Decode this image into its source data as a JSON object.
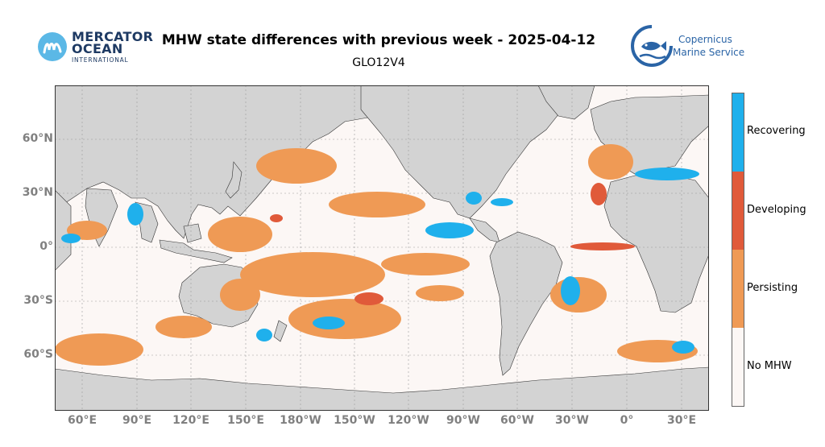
{
  "header": {
    "title": "MHW state differences with previous week - 2025-04-12",
    "subtitle": "GLO12V4"
  },
  "logos": {
    "mercator": {
      "line1": "MERCATOR",
      "line2": "OCEAN",
      "line3": "INTERNATIONAL"
    },
    "copernicus": {
      "line1": "Copernicus",
      "line2": "Marine Service"
    }
  },
  "map": {
    "projection": "PlateCarree, central longitude 180",
    "latitude_labels": [
      "60°N",
      "30°N",
      "0°",
      "30°S",
      "60°S"
    ],
    "longitude_labels": [
      "60°E",
      "90°E",
      "120°E",
      "150°E",
      "180°W",
      "150°W",
      "120°W",
      "90°W",
      "60°W",
      "30°W",
      "0°",
      "30°E"
    ],
    "colors": {
      "land": "#d3d3d3",
      "ocean_no_mhw": "#fcf7f5",
      "persisting": "#ef9a55",
      "developing": "#e05a3a",
      "recovering": "#1fb0ec"
    }
  },
  "legend": {
    "items": [
      {
        "label": "Recovering",
        "color": "#1fb0ec"
      },
      {
        "label": "Developing",
        "color": "#e05a3a"
      },
      {
        "label": "Persisting",
        "color": "#ef9a55"
      },
      {
        "label": "No MHW",
        "color": "#fcf7f5"
      }
    ]
  }
}
